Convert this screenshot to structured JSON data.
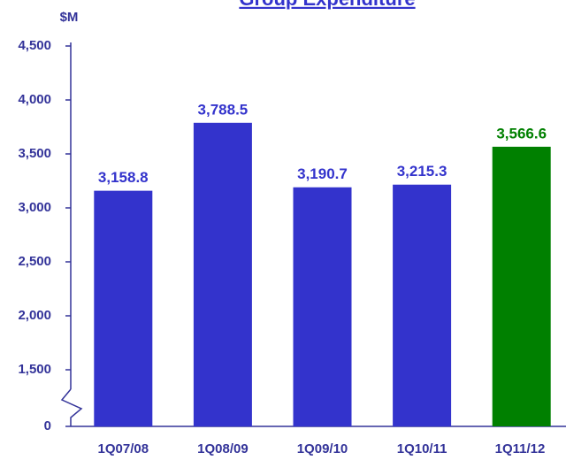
{
  "chart_data": {
    "type": "bar",
    "title": "Group Expenditure",
    "y_label": "$M",
    "categories": [
      "1Q07/08",
      "1Q08/09",
      "1Q09/10",
      "1Q10/11",
      "1Q11/12"
    ],
    "values": [
      3158.8,
      3788.5,
      3190.7,
      3215.3,
      3566.6
    ],
    "value_labels": [
      "3,158.8",
      "3,788.5",
      "3,190.7",
      "3,215.3",
      "3,566.6"
    ],
    "colors": [
      "#3333cc",
      "#3333cc",
      "#3333cc",
      "#3333cc",
      "#008000"
    ],
    "ylim": [
      0,
      4500
    ],
    "axis_break": [
      0,
      1500
    ],
    "yticks": [
      0,
      {
        "value": 1500,
        "label": "1,500"
      },
      {
        "value": 2000,
        "label": "2,000"
      },
      {
        "value": 2500,
        "label": "2,500"
      },
      {
        "value": 3000,
        "label": "3,000"
      },
      {
        "value": 3500,
        "label": "3,500"
      },
      {
        "value": 4000,
        "label": "4,000"
      },
      {
        "value": 4500,
        "label": "4,500"
      }
    ]
  }
}
